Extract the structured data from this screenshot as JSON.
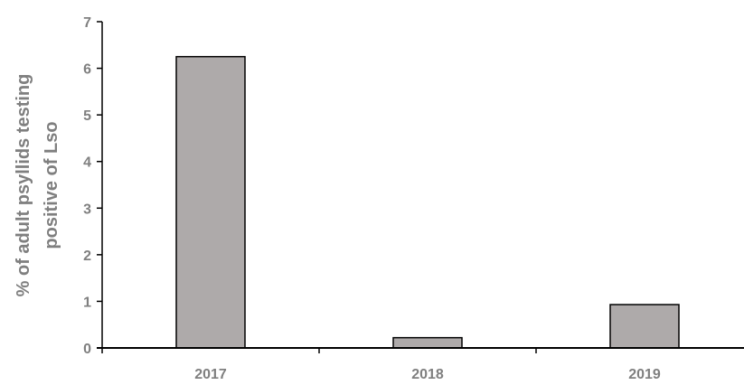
{
  "chart_data": {
    "type": "bar",
    "title": "",
    "xlabel": "",
    "ylabel_lines": [
      "% of adult psyllids testing",
      "positive of Lso"
    ],
    "categories": [
      "2017",
      "2018",
      "2019"
    ],
    "values": [
      6.25,
      0.22,
      0.93
    ],
    "ylim": [
      0,
      7
    ],
    "yticks": [
      "0",
      "1",
      "2",
      "3",
      "4",
      "5",
      "6",
      "7"
    ],
    "grid": false,
    "legend": "none",
    "bar_color": "#aeaaaa",
    "bar_edge_color": "#000000",
    "axis_color": "#000000",
    "text_color": "#7f7f7f"
  }
}
